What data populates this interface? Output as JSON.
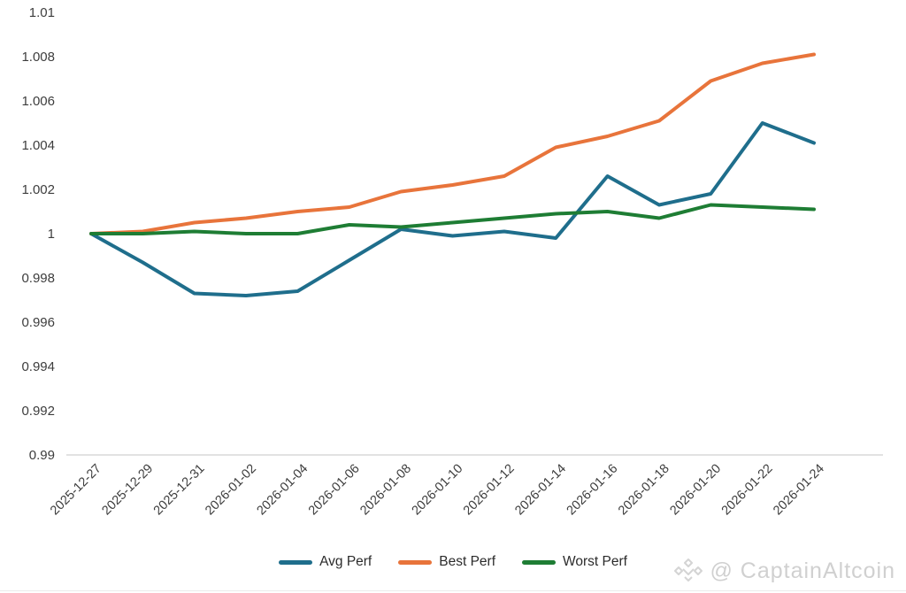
{
  "chart_data": {
    "type": "line",
    "title": "",
    "xlabel": "",
    "ylabel": "",
    "x_labels": [
      "2025-12-27",
      "2025-12-29",
      "2025-12-31",
      "2026-01-02",
      "2026-01-04",
      "2026-01-06",
      "2026-01-08",
      "2026-01-10",
      "2026-01-12",
      "2026-01-14",
      "2026-01-16",
      "2026-01-18",
      "2026-01-20",
      "2026-01-22",
      "2026-01-24"
    ],
    "series": [
      {
        "name": "Avg Perf",
        "color": "#1F6E8C",
        "values": [
          1.0,
          0.9987,
          0.9973,
          0.9972,
          0.9974,
          0.9988,
          1.0002,
          0.9999,
          1.0001,
          0.9998,
          1.0026,
          1.0013,
          1.0018,
          1.005,
          1.0041
        ]
      },
      {
        "name": "Best Perf",
        "color": "#E8743B",
        "values": [
          1.0,
          1.0001,
          1.0005,
          1.0007,
          1.001,
          1.0012,
          1.0019,
          1.0022,
          1.0026,
          1.0039,
          1.0044,
          1.0051,
          1.0069,
          1.0077,
          1.0081
        ]
      },
      {
        "name": "Worst Perf",
        "color": "#1E7D34",
        "values": [
          1.0,
          1.0,
          1.0001,
          1.0,
          1.0,
          1.0004,
          1.0003,
          1.0005,
          1.0007,
          1.0009,
          1.001,
          1.0007,
          1.0013,
          1.0012,
          1.0011
        ]
      }
    ],
    "ylim": [
      0.99,
      1.01
    ],
    "y_ticks": [
      0.99,
      0.992,
      0.994,
      0.996,
      0.998,
      1,
      1.002,
      1.004,
      1.006,
      1.008,
      1.01
    ],
    "grid": false,
    "legend_position": "bottom"
  },
  "watermark": {
    "text": "@ CaptainAltcoin"
  }
}
